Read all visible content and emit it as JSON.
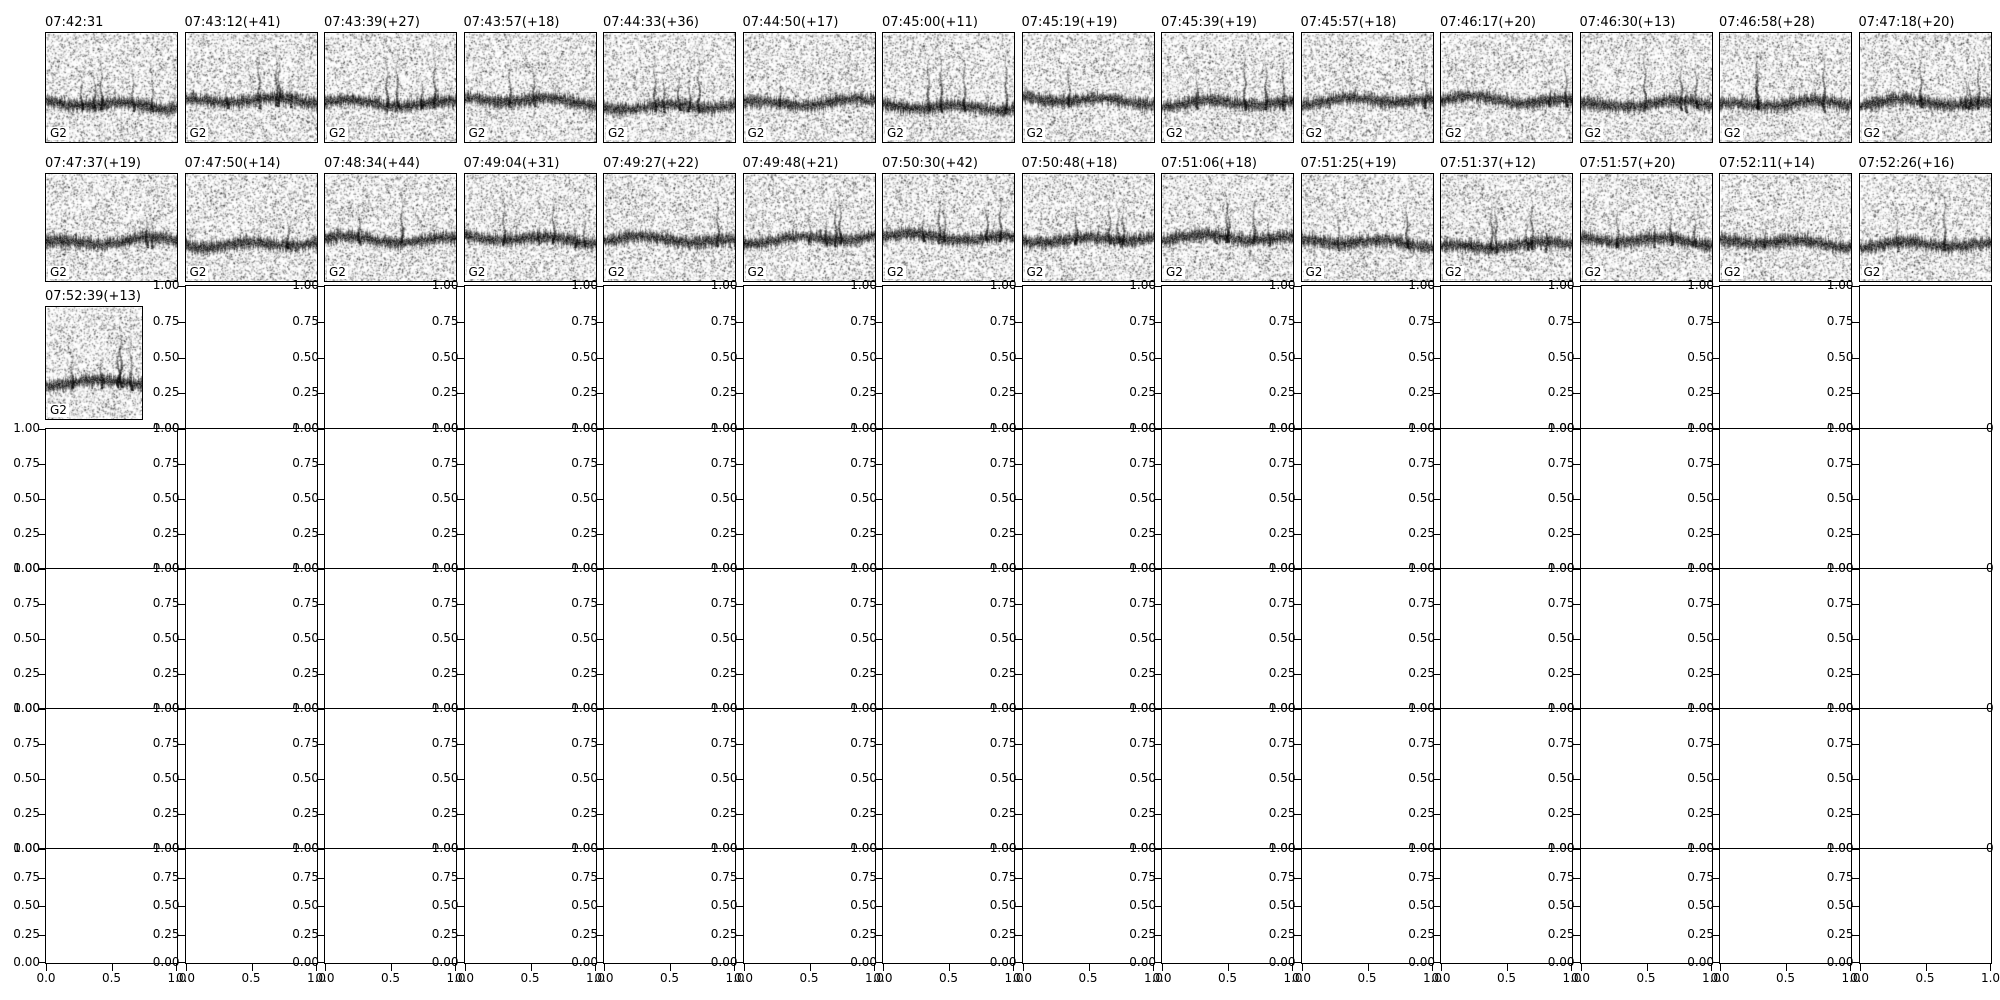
{
  "figure": {
    "background": "#ffffff",
    "text_color": "#000000",
    "panel_label": "G2",
    "y_tick_labels": [
      "1.00",
      "0.75",
      "0.50",
      "0.25",
      "0.00"
    ],
    "x_tick_labels": [
      "0.0",
      "0.5",
      "1.0"
    ],
    "right_edge_clipped_label": "0"
  },
  "chart_data": {
    "type": "heatmap",
    "title": "",
    "description": "7x14 grid of matplotlib subplots. The first 29 cells (rows 1-2 fully, plus first cell of row 3) show grayscale audio spectrogram thumbnails, each titled with a capture time HH:MM:SS(+seconds since previous clip) and carrying the channel label G2 inside the lower-left corner. All remaining subplots are empty axes with default 0-1 limits: y tick labels 1.00/0.75/0.50/0.25/0.00 on every empty axes and x tick labels 0.0/0.5/1.0 under the bottom row. Because the subplots are packed tightly, neighbouring tick labels overlap (0.00 over 1.00 at row joints, 1.0 next to 0.0 at column joints).",
    "grid": {
      "rows": 7,
      "cols": 14
    },
    "spectrogram_rows": [
      [
        "07:42:31",
        "07:43:12(+41)",
        "07:43:39(+27)",
        "07:43:57(+18)",
        "07:44:33(+36)",
        "07:44:50(+17)",
        "07:45:00(+11)",
        "07:45:19(+19)",
        "07:45:39(+19)",
        "07:45:57(+18)",
        "07:46:17(+20)",
        "07:46:30(+13)",
        "07:46:58(+28)",
        "07:47:18(+20)"
      ],
      [
        "07:47:37(+19)",
        "07:47:50(+14)",
        "07:48:34(+44)",
        "07:49:04(+31)",
        "07:49:27(+22)",
        "07:49:48(+21)",
        "07:50:30(+42)",
        "07:50:48(+18)",
        "07:51:06(+18)",
        "07:51:25(+19)",
        "07:51:37(+12)",
        "07:51:57(+20)",
        "07:52:11(+14)",
        "07:52:26(+16)"
      ],
      [
        "07:52:39(+13)"
      ]
    ],
    "panel_label": "G2",
    "empty_axes": {
      "y_ticks": [
        1.0,
        0.75,
        0.5,
        0.25,
        0.0
      ],
      "x_ticks": [
        0.0,
        0.5,
        1.0
      ],
      "x_ticks_only_bottom_row": true
    }
  }
}
